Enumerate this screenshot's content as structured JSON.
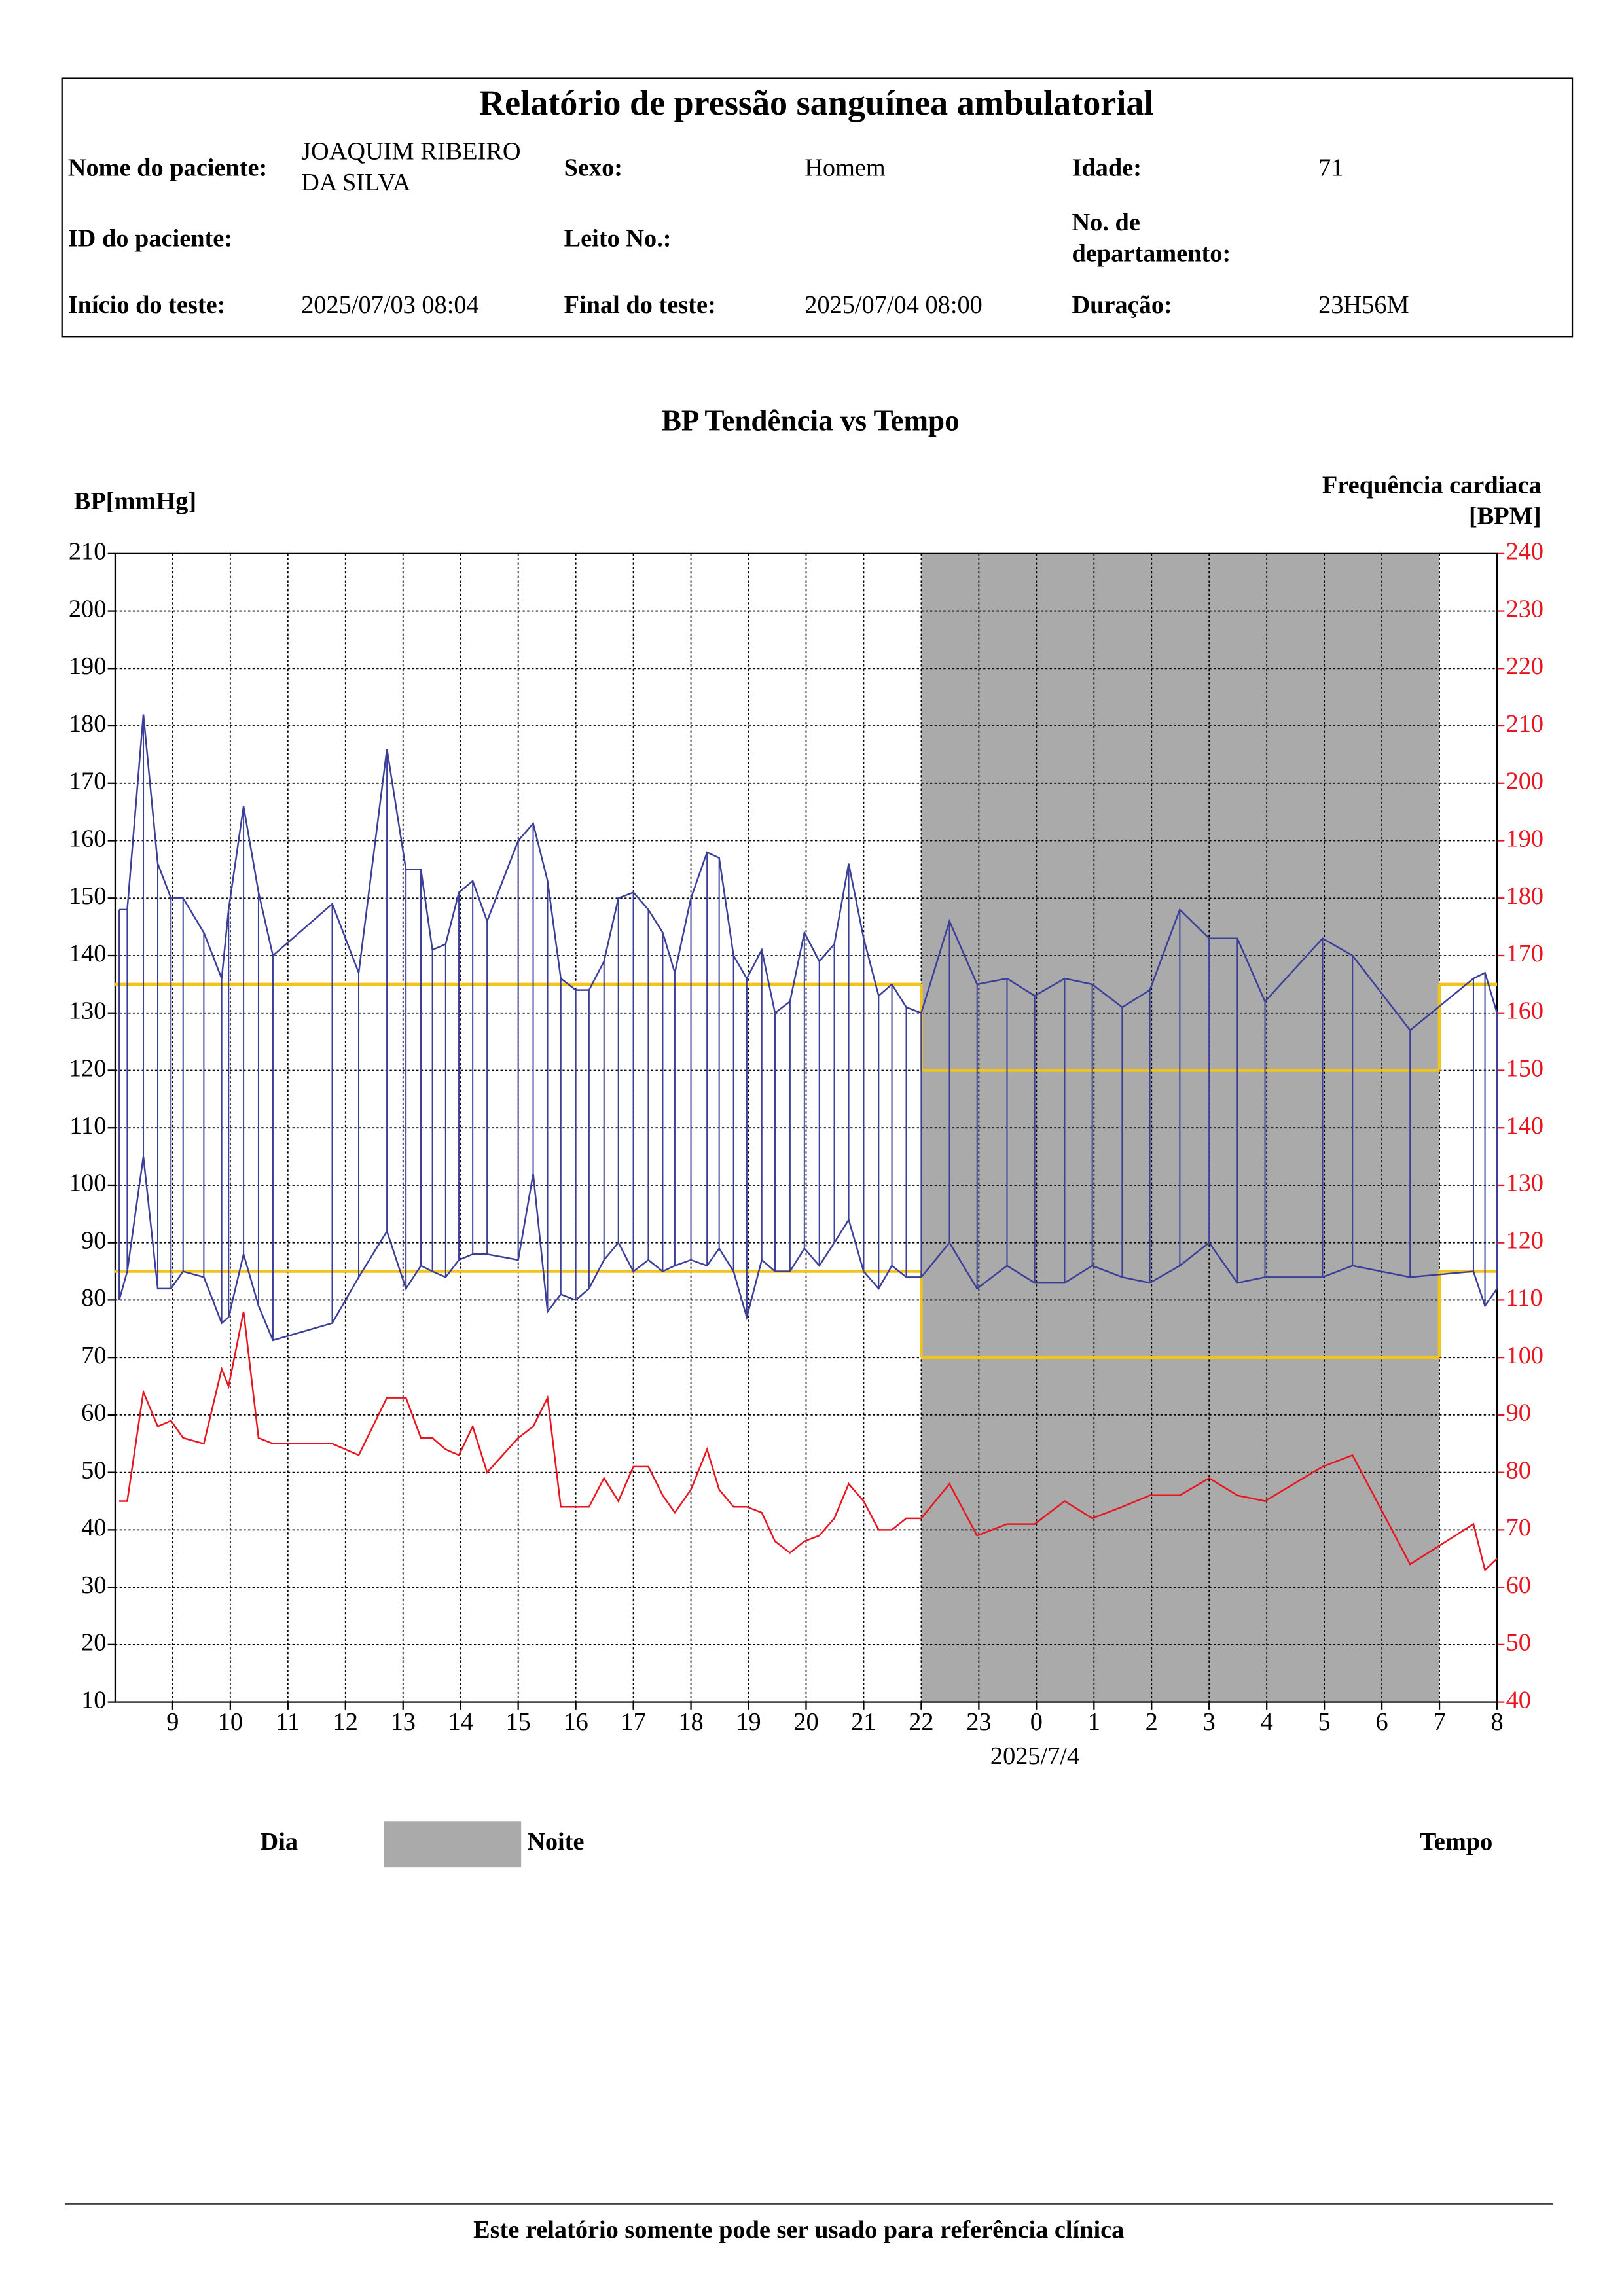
{
  "header": {
    "title": "Relatório de pressão sanguínea ambulatorial",
    "fields": [
      {
        "label": "Nome do paciente:",
        "value": "JOAQUIM RIBEIRO DA SILVA"
      },
      {
        "label": "Sexo:",
        "value": "Homem"
      },
      {
        "label": "Idade:",
        "value": "71"
      },
      {
        "label": "ID do paciente:"
      },
      {
        "label": "Leito No.:"
      },
      {
        "label": "No. de departamento:"
      },
      {
        "label": "Início do teste:",
        "value": "2025/07/03 08:04"
      },
      {
        "label": "Final do teste:",
        "value": "2025/07/04 08:00"
      },
      {
        "label": "Duração:",
        "value": "23H56M"
      }
    ]
  },
  "chart_data": {
    "type": "line",
    "title": "BP Tendência vs Tempo",
    "y_label": "BP[mmHg]",
    "y2_label": "Frequência cardiaca [BPM]",
    "date_label": "2025/7/4",
    "x": [
      8.07,
      8.21,
      8.49,
      8.74,
      8.97,
      9.18,
      9.54,
      9.85,
      9.97,
      10.23,
      10.49,
      10.74,
      11.77,
      12.23,
      12.72,
      13.05,
      13.31,
      13.51,
      13.74,
      13.97,
      14.21,
      14.46,
      15.0,
      15.26,
      15.51,
      15.74,
      16.0,
      16.23,
      16.49,
      16.74,
      17.0,
      17.26,
      17.51,
      17.72,
      18.0,
      18.28,
      18.49,
      18.74,
      18.97,
      19.23,
      19.46,
      19.72,
      19.97,
      20.23,
      20.49,
      20.74,
      21.0,
      21.26,
      21.49,
      21.74,
      22.0,
      22.49,
      22.97,
      23.49,
      23.97,
      24.49,
      24.97,
      25.49,
      25.97,
      26.49,
      27.0,
      27.49,
      27.97,
      28.97,
      29.49,
      30.49,
      31.59,
      31.79,
      32.0
    ],
    "series": [
      {
        "color": "#3b3f98",
        "values": [
          148,
          148,
          182,
          156,
          150,
          150,
          144,
          136,
          148,
          166,
          151,
          140,
          149,
          137,
          176,
          155,
          155,
          141,
          142,
          151,
          153,
          146,
          160,
          163,
          153,
          136,
          134,
          134,
          139,
          150,
          151,
          148,
          144,
          137,
          150,
          158,
          157,
          140,
          136,
          141,
          130,
          132,
          144,
          139,
          142,
          156,
          143,
          133,
          135,
          131,
          130,
          146,
          135,
          136,
          133,
          136,
          135,
          131,
          134,
          148,
          143,
          143,
          132,
          143,
          140,
          127,
          136,
          137,
          130
        ]
      },
      {
        "color": "#3b3f98",
        "values": [
          80,
          85,
          105,
          82,
          82,
          85,
          84,
          76,
          77,
          88,
          79,
          73,
          76,
          84,
          92,
          82,
          86,
          85,
          84,
          87,
          88,
          88,
          87,
          102,
          78,
          81,
          80,
          82,
          87,
          90,
          85,
          87,
          85,
          86,
          87,
          86,
          89,
          85,
          77,
          87,
          85,
          85,
          89,
          86,
          90,
          94,
          85,
          82,
          86,
          84,
          84,
          90,
          82,
          86,
          83,
          83,
          86,
          84,
          83,
          86,
          90,
          83,
          84,
          84,
          86,
          84,
          85,
          79,
          82
        ]
      },
      {
        "color": "#e8141e",
        "axis": "y2",
        "values": [
          75,
          75,
          94,
          88,
          89,
          86,
          85,
          98,
          95,
          108,
          86,
          85,
          85,
          83,
          93,
          93,
          86,
          86,
          84,
          83,
          88,
          80,
          86,
          88,
          93,
          74,
          74,
          74,
          79,
          75,
          81,
          81,
          76,
          73,
          77,
          84,
          77,
          74,
          74,
          73,
          68,
          66,
          68,
          69,
          72,
          78,
          75,
          70,
          70,
          72,
          72,
          78,
          69,
          71,
          71,
          75,
          72,
          74,
          76,
          76,
          79,
          76,
          75,
          81,
          83,
          64,
          71,
          63,
          65
        ]
      }
    ],
    "xlim": [
      8,
      32
    ],
    "xticks": [
      9,
      10,
      11,
      12,
      13,
      14,
      15,
      16,
      17,
      18,
      19,
      20,
      21,
      22,
      23,
      {
        "value": 24,
        "label": "0"
      },
      {
        "value": 25,
        "label": "1"
      },
      {
        "value": 26,
        "label": "2"
      },
      {
        "value": 27,
        "label": "3"
      },
      {
        "value": 28,
        "label": "4"
      },
      {
        "value": 29,
        "label": "5"
      },
      {
        "value": 30,
        "label": "6"
      },
      {
        "value": 31,
        "label": "7"
      },
      {
        "value": 32,
        "label": "8"
      }
    ],
    "ylim": [
      10,
      210
    ],
    "yticks": [
      10,
      20,
      30,
      40,
      50,
      60,
      70,
      80,
      90,
      100,
      110,
      120,
      130,
      140,
      150,
      160,
      170,
      180,
      190,
      200,
      210
    ],
    "y2lim": [
      40,
      240
    ],
    "y2ticks": [
      40,
      50,
      60,
      70,
      80,
      90,
      100,
      110,
      120,
      130,
      140,
      150,
      160,
      170,
      180,
      190,
      200,
      210,
      220,
      230,
      240
    ],
    "y2color": "#e8141e",
    "grid": true,
    "night": {
      "start": 22,
      "end": 31,
      "color": "#aaaaaa"
    },
    "thresholds": {
      "color": "#f2c318",
      "day": {
        "systolic": 135,
        "diastolic": 85
      },
      "night": {
        "systolic": 120,
        "diastolic": 70
      }
    },
    "legend": {
      "day": "Dia",
      "night": "Noite",
      "time": "Tempo"
    }
  },
  "footer": "Este relatório somente pode ser usado para referência clínica"
}
